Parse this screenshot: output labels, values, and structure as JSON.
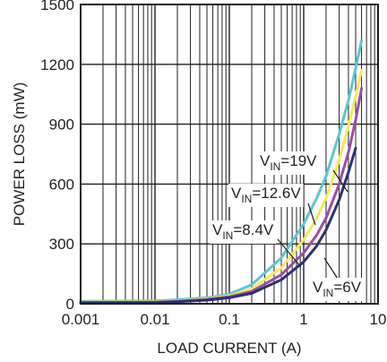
{
  "chart_data": {
    "type": "line",
    "title": "",
    "xlabel": "LOAD CURRENT (A)",
    "ylabel": "POWER LOSS (mW)",
    "x_scale": "log",
    "xlim": [
      0.001,
      10
    ],
    "ylim": [
      0,
      1500
    ],
    "x_ticks": [
      0.001,
      0.01,
      0.1,
      1,
      10
    ],
    "x_tick_labels": [
      "0.001",
      "0.01",
      "0.1",
      "1",
      "10"
    ],
    "y_ticks": [
      0,
      300,
      600,
      900,
      1200,
      1500
    ],
    "y_tick_labels": [
      "0",
      "300",
      "600",
      "900",
      "1200",
      "1500"
    ],
    "grid": true,
    "legend": "none (inline labels)",
    "series": [
      {
        "name": "VIN=19V",
        "label_main": "V",
        "label_sub": "IN",
        "label_rest": "=19V",
        "color": "#5cc6d0",
        "x": [
          0.001,
          0.01,
          0.02,
          0.05,
          0.1,
          0.2,
          0.5,
          1,
          1.5,
          2,
          3,
          4,
          5,
          6
        ],
        "y": [
          12,
          15,
          20,
          30,
          48,
          95,
          230,
          400,
          530,
          640,
          850,
          1020,
          1180,
          1320
        ]
      },
      {
        "name": "VIN=12.6V",
        "label_main": "V",
        "label_sub": "IN",
        "label_rest": "=12.6V",
        "color": "#f2ea5a",
        "x": [
          0.001,
          0.01,
          0.02,
          0.05,
          0.1,
          0.2,
          0.5,
          1,
          1.5,
          2,
          3,
          4,
          5,
          6
        ],
        "y": [
          8,
          10,
          14,
          25,
          40,
          75,
          180,
          320,
          430,
          530,
          720,
          890,
          1040,
          1170
        ]
      },
      {
        "name": "VIN=8.4V",
        "label_main": "V",
        "label_sub": "IN",
        "label_rest": "=8.4V",
        "color": "#9a4f9e",
        "x": [
          0.001,
          0.01,
          0.02,
          0.05,
          0.1,
          0.2,
          0.5,
          1,
          1.5,
          2,
          3,
          4,
          5,
          6
        ],
        "y": [
          6,
          8,
          12,
          22,
          35,
          62,
          145,
          255,
          345,
          430,
          600,
          760,
          920,
          1080
        ]
      },
      {
        "name": "VIN=6V",
        "label_main": "V",
        "label_sub": "IN",
        "label_rest": "=6V",
        "color": "#2e2f6e",
        "x": [
          0.001,
          0.01,
          0.02,
          0.05,
          0.1,
          0.2,
          0.5,
          1,
          1.5,
          2,
          3,
          4,
          5
        ],
        "y": [
          5,
          6,
          10,
          18,
          30,
          52,
          120,
          210,
          290,
          370,
          520,
          660,
          780
        ]
      }
    ]
  }
}
